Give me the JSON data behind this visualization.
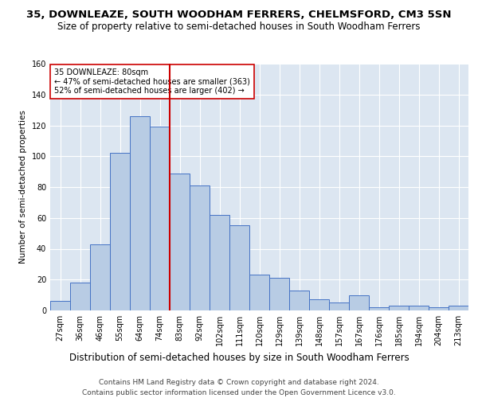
{
  "title": "35, DOWNLEAZE, SOUTH WOODHAM FERRERS, CHELMSFORD, CM3 5SN",
  "subtitle": "Size of property relative to semi-detached houses in South Woodham Ferrers",
  "xlabel": "Distribution of semi-detached houses by size in South Woodham Ferrers",
  "ylabel": "Number of semi-detached properties",
  "footer1": "Contains HM Land Registry data © Crown copyright and database right 2024.",
  "footer2": "Contains public sector information licensed under the Open Government Licence v3.0.",
  "categories": [
    "27sqm",
    "36sqm",
    "46sqm",
    "55sqm",
    "64sqm",
    "74sqm",
    "83sqm",
    "92sqm",
    "102sqm",
    "111sqm",
    "120sqm",
    "129sqm",
    "139sqm",
    "148sqm",
    "157sqm",
    "167sqm",
    "176sqm",
    "185sqm",
    "194sqm",
    "204sqm",
    "213sqm"
  ],
  "values": [
    6,
    18,
    43,
    102,
    126,
    119,
    89,
    81,
    62,
    55,
    23,
    21,
    13,
    7,
    5,
    10,
    2,
    3,
    3,
    2,
    3
  ],
  "bar_color": "#b8cce4",
  "bar_edge_color": "#4472c4",
  "vline_color": "#cc0000",
  "vline_pos": 5.5,
  "annotation_text": "35 DOWNLEAZE: 80sqm\n← 47% of semi-detached houses are smaller (363)\n52% of semi-detached houses are larger (402) →",
  "annotation_box_color": "#ffffff",
  "annotation_box_edge": "#cc0000",
  "ylim": [
    0,
    160
  ],
  "yticks": [
    0,
    20,
    40,
    60,
    80,
    100,
    120,
    140,
    160
  ],
  "bg_color": "#dce6f1",
  "title_fontsize": 9.5,
  "subtitle_fontsize": 8.5,
  "xlabel_fontsize": 8.5,
  "ylabel_fontsize": 7.5,
  "tick_fontsize": 7,
  "annot_fontsize": 7,
  "footer_fontsize": 6.5
}
